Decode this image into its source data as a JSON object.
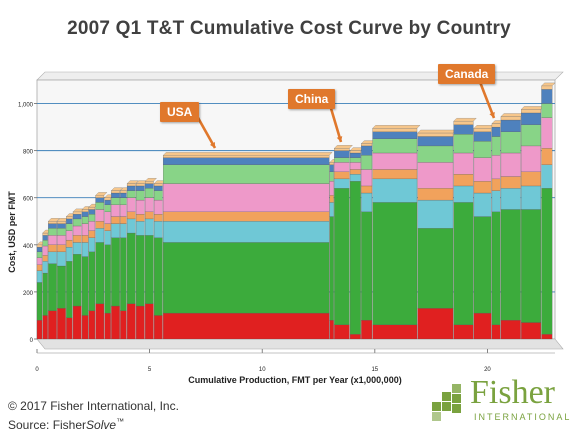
{
  "title": "2007 Q1 T&T Cumulative Cost Curve by Country",
  "footer": {
    "copyright": "© 2017 Fisher International, Inc.",
    "source_prefix": "Source: Fisher",
    "source_brand": "Solve",
    "source_tm": "™"
  },
  "logo": {
    "name": "Fisher",
    "subtitle": "INTERNATIONAL"
  },
  "callouts": [
    {
      "label": "USA",
      "target_x": 7.5
    },
    {
      "label": "China",
      "target_x": 13.4
    },
    {
      "label": "Canada",
      "target_x": 19.8
    }
  ],
  "colors": {
    "callout": "#e0782c",
    "layers": [
      "#e02020",
      "#3cab3c",
      "#6fc8d6",
      "#f1a25c",
      "#ee99c9",
      "#88d487",
      "#4e81bd",
      "#f6c68b"
    ]
  },
  "chart_data": {
    "type": "area",
    "title": "2007 Q1 T&T Cumulative Cost Curve by Country",
    "xlabel": "Cumulative Production, FMT per Year (x1,000,000)",
    "ylabel": "Cost, USD per FMT",
    "xlim": [
      0,
      23
    ],
    "ylim": [
      0,
      1100
    ],
    "x_ticks": [
      "0",
      "5",
      "10",
      "15",
      "20"
    ],
    "x_tick_values": [
      0,
      5,
      10,
      15,
      20
    ],
    "y_ticks": [
      "0",
      "200",
      "400",
      "600",
      "800",
      "1,000"
    ],
    "y_tick_values": [
      0,
      200,
      400,
      600,
      800,
      1000
    ],
    "gridlines": [
      200,
      600,
      800,
      1000
    ],
    "layer_order": [
      "base",
      "fiber",
      "chemicals",
      "energy",
      "pink",
      "lightgreen",
      "blue",
      "tan"
    ],
    "series": [
      {
        "x0": 0.0,
        "x1": 0.25,
        "layers": [
          80,
          160,
          50,
          25,
          30,
          25,
          20,
          10
        ]
      },
      {
        "x0": 0.25,
        "x1": 0.5,
        "layers": [
          100,
          180,
          50,
          25,
          40,
          25,
          20,
          10
        ]
      },
      {
        "x0": 0.5,
        "x1": 0.9,
        "layers": [
          120,
          200,
          50,
          30,
          40,
          30,
          20,
          10
        ]
      },
      {
        "x0": 0.9,
        "x1": 1.3,
        "layers": [
          130,
          180,
          60,
          30,
          40,
          30,
          20,
          10
        ]
      },
      {
        "x0": 1.3,
        "x1": 1.6,
        "layers": [
          90,
          240,
          60,
          30,
          40,
          30,
          20,
          10
        ]
      },
      {
        "x0": 1.6,
        "x1": 2.0,
        "layers": [
          140,
          220,
          50,
          30,
          40,
          30,
          20,
          10
        ]
      },
      {
        "x0": 2.0,
        "x1": 2.3,
        "layers": [
          100,
          250,
          60,
          30,
          50,
          30,
          20,
          10
        ]
      },
      {
        "x0": 2.3,
        "x1": 2.6,
        "layers": [
          120,
          250,
          60,
          30,
          40,
          30,
          20,
          10
        ]
      },
      {
        "x0": 2.6,
        "x1": 3.0,
        "layers": [
          150,
          260,
          60,
          30,
          50,
          30,
          20,
          10
        ]
      },
      {
        "x0": 3.0,
        "x1": 3.3,
        "layers": [
          110,
          290,
          60,
          30,
          50,
          30,
          20,
          10
        ]
      },
      {
        "x0": 3.3,
        "x1": 3.7,
        "layers": [
          140,
          290,
          60,
          30,
          50,
          30,
          20,
          10
        ]
      },
      {
        "x0": 3.7,
        "x1": 4.0,
        "layers": [
          120,
          310,
          60,
          30,
          50,
          30,
          20,
          10
        ]
      },
      {
        "x0": 4.0,
        "x1": 4.4,
        "layers": [
          150,
          300,
          60,
          30,
          60,
          30,
          20,
          10
        ]
      },
      {
        "x0": 4.4,
        "x1": 4.8,
        "layers": [
          140,
          300,
          60,
          30,
          60,
          40,
          20,
          10
        ]
      },
      {
        "x0": 4.8,
        "x1": 5.2,
        "layers": [
          150,
          290,
          70,
          30,
          60,
          40,
          20,
          10
        ]
      },
      {
        "x0": 5.2,
        "x1": 5.6,
        "layers": [
          100,
          330,
          70,
          30,
          60,
          40,
          20,
          10
        ]
      },
      {
        "x0": 5.6,
        "x1": 13.0,
        "layers": [
          110,
          300,
          90,
          40,
          120,
          80,
          30,
          10
        ]
      },
      {
        "x0": 13.0,
        "x1": 13.2,
        "layers": [
          80,
          440,
          60,
          30,
          60,
          40,
          30,
          10
        ]
      },
      {
        "x0": 13.2,
        "x1": 13.9,
        "layers": [
          60,
          580,
          40,
          30,
          40,
          20,
          30,
          10
        ]
      },
      {
        "x0": 13.9,
        "x1": 14.4,
        "layers": [
          20,
          650,
          30,
          20,
          30,
          20,
          20,
          10
        ]
      },
      {
        "x0": 14.4,
        "x1": 14.9,
        "layers": [
          80,
          460,
          80,
          30,
          70,
          60,
          40,
          10
        ]
      },
      {
        "x0": 14.9,
        "x1": 16.9,
        "layers": [
          60,
          520,
          100,
          40,
          70,
          60,
          30,
          15
        ]
      },
      {
        "x0": 16.9,
        "x1": 18.5,
        "layers": [
          130,
          340,
          120,
          50,
          110,
          70,
          40,
          15
        ]
      },
      {
        "x0": 18.5,
        "x1": 19.4,
        "layers": [
          60,
          520,
          70,
          50,
          90,
          80,
          40,
          15
        ]
      },
      {
        "x0": 19.4,
        "x1": 20.2,
        "layers": [
          110,
          410,
          100,
          50,
          100,
          70,
          40,
          15
        ]
      },
      {
        "x0": 20.2,
        "x1": 20.6,
        "layers": [
          60,
          480,
          90,
          50,
          100,
          80,
          40,
          15
        ]
      },
      {
        "x0": 20.6,
        "x1": 21.5,
        "layers": [
          80,
          470,
          90,
          50,
          100,
          90,
          50,
          15
        ]
      },
      {
        "x0": 21.5,
        "x1": 22.4,
        "layers": [
          70,
          480,
          100,
          60,
          110,
          90,
          50,
          15
        ]
      },
      {
        "x0": 22.4,
        "x1": 22.9,
        "layers": [
          20,
          620,
          100,
          70,
          130,
          60,
          60,
          15
        ]
      }
    ]
  }
}
